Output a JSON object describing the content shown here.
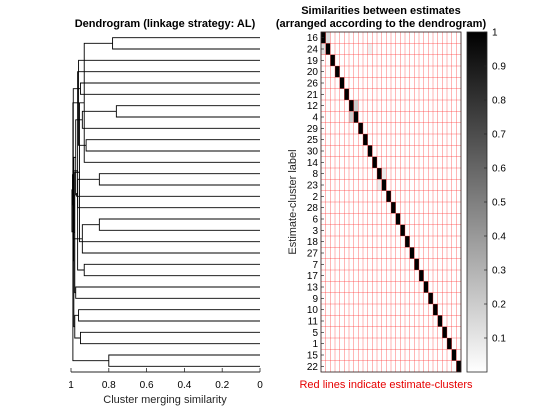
{
  "chart_data": [
    {
      "type": "dendrogram",
      "title": "Dendrogram (linkage strategy: AL)",
      "xlabel": "Cluster merging similarity",
      "xlim": [
        1,
        0
      ],
      "xticks": [
        "1",
        "0.8",
        "0.6",
        "0.4",
        "0.2",
        "0"
      ],
      "leaf_order": [
        "16",
        "24",
        "19",
        "20",
        "26",
        "21",
        "12",
        "4",
        "29",
        "25",
        "30",
        "14",
        "8",
        "23",
        "2",
        "28",
        "6",
        "3",
        "18",
        "27",
        "7",
        "17",
        "13",
        "9",
        "10",
        "11",
        "5",
        "1",
        "15",
        "22"
      ],
      "merges": [
        {
          "a": 0,
          "b": 1,
          "sim": 0.78
        },
        {
          "a": 6,
          "b": 7,
          "sim": 0.76
        },
        {
          "a": 28,
          "b": 29,
          "sim": 0.8
        },
        {
          "a": 12,
          "b": 13,
          "sim": 0.85
        },
        {
          "a": 16,
          "b": 17,
          "sim": 0.85
        },
        {
          "a": 9,
          "b": 10,
          "sim": 0.92
        },
        {
          "a": 8,
          "b": 31,
          "sim": 0.94
        },
        {
          "a": 11,
          "b": 30,
          "sim": 0.93
        },
        {
          "a": 20,
          "b": 21,
          "sim": 0.93
        },
        {
          "a": 4,
          "b": 5,
          "sim": 0.95
        },
        {
          "a": 19,
          "b": 34,
          "sim": 0.94
        },
        {
          "a": 2,
          "b": 35,
          "sim": 0.96
        },
        {
          "a": 3,
          "b": 38,
          "sim": 0.965
        },
        {
          "a": 26,
          "b": 27,
          "sim": 0.95
        },
        {
          "a": 18,
          "b": 37,
          "sim": 0.955
        },
        {
          "a": 24,
          "b": 25,
          "sim": 0.96
        },
        {
          "a": 15,
          "b": 33,
          "sim": 0.965
        },
        {
          "a": 14,
          "b": 46,
          "sim": 0.97
        },
        {
          "a": 22,
          "b": 23,
          "sim": 0.975
        },
        {
          "a": 36,
          "b": 47,
          "sim": 0.975
        },
        {
          "a": 44,
          "b": 48,
          "sim": 0.98
        },
        {
          "a": 45,
          "b": 43,
          "sim": 0.98
        },
        {
          "a": 49,
          "b": 50,
          "sim": 0.985
        },
        {
          "a": 51,
          "b": 52,
          "sim": 0.985
        },
        {
          "a": 39,
          "b": 53,
          "sim": 0.988
        },
        {
          "a": 42,
          "b": 40,
          "sim": 0.99
        },
        {
          "a": 41,
          "b": 32,
          "sim": 0.99
        },
        {
          "a": 54,
          "b": 55,
          "sim": 0.992
        },
        {
          "a": 57,
          "b": 56,
          "sim": 0.995
        }
      ]
    },
    {
      "type": "heatmap",
      "title": "Similarities between estimates",
      "subtitle": "(arranged according to the dendrogram)",
      "ylabel": "Estimate-cluster label",
      "note": "Red lines indicate estimate-clusters",
      "row_labels": [
        "16",
        "24",
        "19",
        "20",
        "26",
        "21",
        "12",
        "4",
        "29",
        "25",
        "30",
        "14",
        "8",
        "23",
        "2",
        "28",
        "6",
        "3",
        "18",
        "27",
        "7",
        "17",
        "13",
        "9",
        "10",
        "11",
        "5",
        "1",
        "15",
        "22"
      ],
      "diagonal_value": 1,
      "off_diagonal_value": 0,
      "highlights": [
        {
          "row": 0,
          "col": 1,
          "value": 0.12
        },
        {
          "row": 1,
          "col": 0,
          "value": 0.12
        },
        {
          "row": 6,
          "col": 7,
          "value": 0.2
        },
        {
          "row": 7,
          "col": 6,
          "value": 0.2
        },
        {
          "row": 1,
          "col": 10,
          "value": 0.06
        },
        {
          "row": 12,
          "col": 13,
          "value": 0.08
        },
        {
          "row": 13,
          "col": 12,
          "value": 0.08
        }
      ],
      "colorbar": {
        "range": [
          0,
          1
        ],
        "ticks": [
          "0.1",
          "0.2",
          "0.3",
          "0.4",
          "0.5",
          "0.6",
          "0.7",
          "0.8",
          "0.9",
          "1"
        ],
        "colormap": "gray-reversed"
      },
      "grid_color": "#ff3b3b"
    }
  ]
}
